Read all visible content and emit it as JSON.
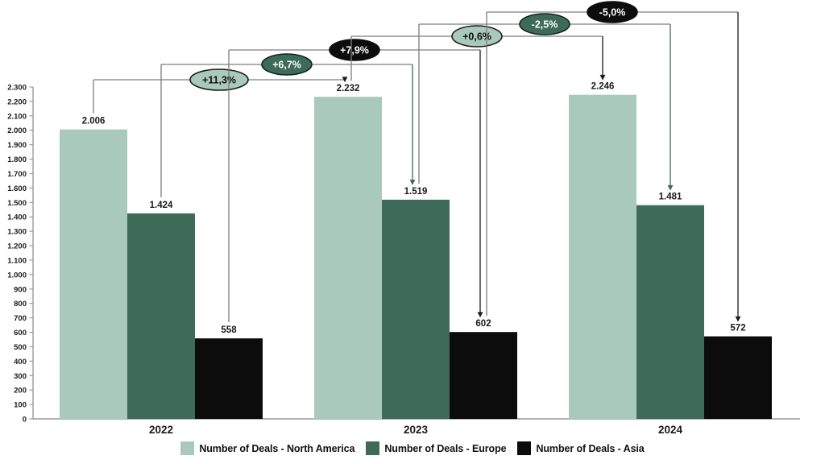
{
  "chart_data": {
    "type": "bar",
    "title": "",
    "xlabel": "",
    "ylabel": "",
    "categories": [
      "2022",
      "2023",
      "2024"
    ],
    "series": [
      {
        "name": "Number of Deals - North America",
        "color": "#a9c9bc",
        "values": [
          2006,
          2232,
          2246
        ],
        "value_labels": [
          "2.006",
          "2.232",
          "2.246"
        ]
      },
      {
        "name": "Number of Deals - Europe",
        "color": "#3d6b58",
        "values": [
          1424,
          1519,
          1481
        ],
        "value_labels": [
          "1.424",
          "1.519",
          "1.481"
        ]
      },
      {
        "name": "Number of Deals - Asia",
        "color": "#0c0c0c",
        "values": [
          558,
          602,
          572
        ],
        "value_labels": [
          "558",
          "602",
          "572"
        ]
      }
    ],
    "ylim": [
      0,
      2300
    ],
    "ytick_step": 100,
    "ytick_format": "thousands-dot",
    "grid": false,
    "legend_position": "bottom",
    "annotations": [
      {
        "label": "+11,3%",
        "series": 0,
        "from": 0,
        "to": 1,
        "style": "light"
      },
      {
        "label": "+6,7%",
        "series": 1,
        "from": 0,
        "to": 1,
        "style": "dark"
      },
      {
        "label": "+7,9%",
        "series": 2,
        "from": 0,
        "to": 1,
        "style": "black"
      },
      {
        "label": "+0,6%",
        "series": 0,
        "from": 1,
        "to": 2,
        "style": "light"
      },
      {
        "label": "-2,5%",
        "series": 1,
        "from": 1,
        "to": 2,
        "style": "dark"
      },
      {
        "label": "-5,0%",
        "series": 2,
        "from": 1,
        "to": 2,
        "style": "black"
      }
    ],
    "annotation_styles": {
      "light": {
        "fill": "#a9c9bc",
        "text": "#111111",
        "border": "#1a1a1a",
        "arrow": "#1a1a1a"
      },
      "dark": {
        "fill": "#3d6b58",
        "text": "#ffffff",
        "border": "#10241c",
        "arrow": "#3d6b58"
      },
      "black": {
        "fill": "#0c0c0c",
        "text": "#ffffff",
        "border": "#0c0c0c",
        "arrow": "#1a1a1a"
      }
    },
    "axis_color": "#9a9a9a",
    "connector_color": "#7d7d7d",
    "label_color": "#1a1a1a"
  }
}
